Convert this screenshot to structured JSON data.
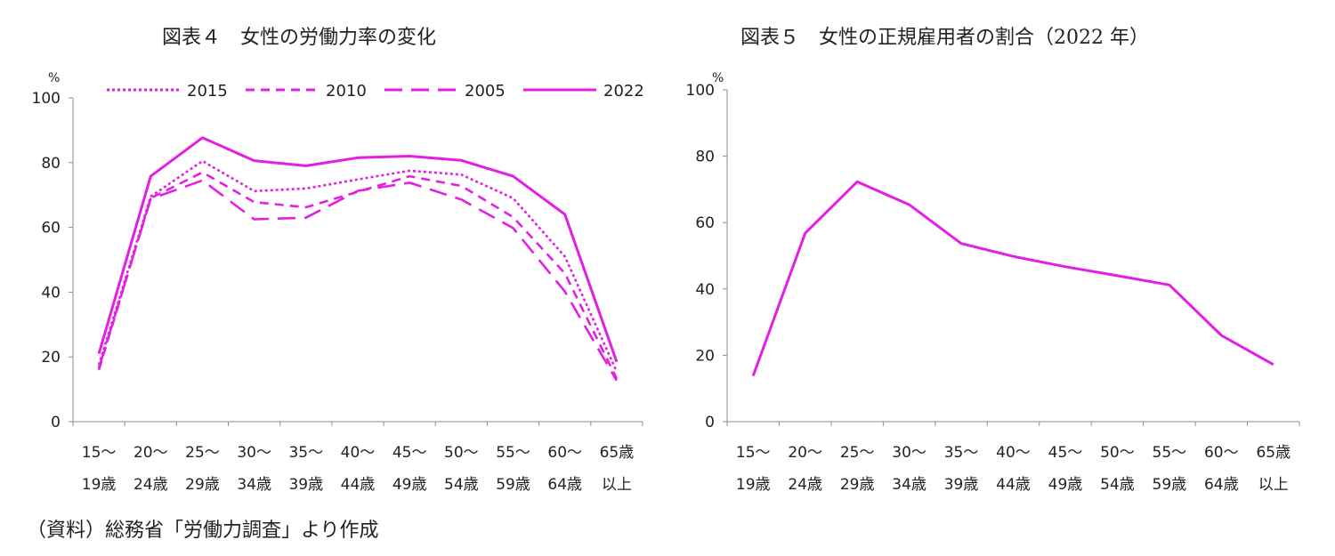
{
  "chart_data": [
    {
      "type": "line",
      "title": "図表４　女性の労働力率の変化",
      "unit": "%",
      "ylim": [
        0,
        100
      ],
      "yticks": [
        "0",
        "20",
        "40",
        "60",
        "80",
        "100"
      ],
      "categories": [
        [
          "15～",
          "19歳"
        ],
        [
          "20～",
          "24歳"
        ],
        [
          "25～",
          "29歳"
        ],
        [
          "30～",
          "34歳"
        ],
        [
          "35～",
          "39歳"
        ],
        [
          "40～",
          "44歳"
        ],
        [
          "45～",
          "49歳"
        ],
        [
          "50～",
          "54歳"
        ],
        [
          "55～",
          "59歳"
        ],
        [
          "60～",
          "64歳"
        ],
        [
          "65歳",
          "以上"
        ]
      ],
      "legend_position": "top",
      "series": [
        {
          "name": "2015",
          "style": "dotted",
          "values": [
            17.5,
            69.5,
            80.5,
            71.2,
            72.0,
            74.8,
            77.5,
            76.3,
            69.0,
            51.0,
            15.5
          ]
        },
        {
          "name": "2010",
          "style": "dashed",
          "values": [
            16.0,
            69.0,
            77.0,
            67.8,
            66.2,
            71.0,
            75.8,
            72.8,
            63.2,
            45.8,
            13.3
          ]
        },
        {
          "name": "2005",
          "style": "long-dashed",
          "values": [
            16.5,
            68.8,
            74.5,
            62.5,
            63.0,
            71.3,
            73.8,
            68.6,
            59.8,
            40.2,
            12.7
          ]
        },
        {
          "name": "2022",
          "style": "solid",
          "values": [
            21.0,
            75.8,
            87.7,
            80.6,
            79.0,
            81.5,
            82.0,
            80.7,
            75.8,
            64.0,
            18.5
          ]
        }
      ],
      "color": "#e21fe3"
    },
    {
      "type": "line",
      "title": "図表５　女性の正規雇用者の割合（2022 年）",
      "unit": "%",
      "ylim": [
        0,
        100
      ],
      "yticks": [
        "0",
        "20",
        "40",
        "60",
        "80",
        "100"
      ],
      "categories": [
        [
          "15～",
          "19歳"
        ],
        [
          "20～",
          "24歳"
        ],
        [
          "25～",
          "29歳"
        ],
        [
          "30～",
          "34歳"
        ],
        [
          "35～",
          "39歳"
        ],
        [
          "40～",
          "44歳"
        ],
        [
          "45～",
          "49歳"
        ],
        [
          "50～",
          "54歳"
        ],
        [
          "55～",
          "59歳"
        ],
        [
          "60～",
          "64歳"
        ],
        [
          "65歳",
          "以上"
        ]
      ],
      "series": [
        {
          "style": "solid",
          "values": [
            13.8,
            56.8,
            72.3,
            65.4,
            53.7,
            49.8,
            46.7,
            44.0,
            41.2,
            26.0,
            17.2
          ]
        }
      ],
      "color": "#e21fe3"
    }
  ],
  "source": "（資料）総務省「労働力調査」より作成"
}
